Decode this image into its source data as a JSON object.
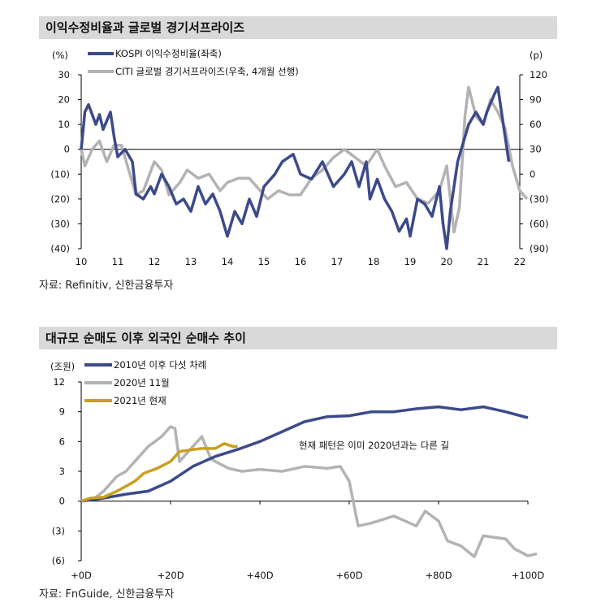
{
  "charts": [
    {
      "title": "이익수정비율과 글로벌 경기서프라이즈",
      "source": "자료: Refinitiv, 신한금융투자",
      "left_unit": "(%)",
      "right_unit": "(p)"
    },
    {
      "title": "대규모 순매도 이후 외국인 순매수 추이",
      "source": "자료: FnGuide, 신한금융투자",
      "left_unit": "(조원)",
      "annotation": "현재 패턴은 이미 2020년과는 다른 길"
    }
  ],
  "chart_data": [
    {
      "type": "line",
      "x_ticks": [
        "10",
        "11",
        "12",
        "13",
        "14",
        "15",
        "16",
        "17",
        "18",
        "19",
        "20",
        "21",
        "22"
      ],
      "xlim": [
        2010,
        2022
      ],
      "ylim_left": [
        -40,
        30
      ],
      "yticks_left": [
        "30",
        "20",
        "10",
        "0",
        "(10)",
        "(20)",
        "(30)",
        "(40)"
      ],
      "ylim_right": [
        -90,
        120
      ],
      "yticks_right": [
        "120",
        "90",
        "60",
        "30",
        "0",
        "(30)",
        "(60)",
        "(90)"
      ],
      "legend": "top-left",
      "series": [
        {
          "name": "KOSPI 이익수정비율(좌축)",
          "axis": "left",
          "color": "#3c4a8a",
          "points": [
            [
              2010,
              0
            ],
            [
              2010.1,
              15
            ],
            [
              2010.2,
              18
            ],
            [
              2010.4,
              10
            ],
            [
              2010.5,
              14
            ],
            [
              2010.6,
              8
            ],
            [
              2010.8,
              15
            ],
            [
              2010.9,
              5
            ],
            [
              2011,
              -3
            ],
            [
              2011.2,
              0
            ],
            [
              2011.4,
              -5
            ],
            [
              2011.5,
              -18
            ],
            [
              2011.7,
              -20
            ],
            [
              2011.9,
              -15
            ],
            [
              2012,
              -18
            ],
            [
              2012.2,
              -10
            ],
            [
              2012.4,
              -15
            ],
            [
              2012.6,
              -22
            ],
            [
              2012.8,
              -20
            ],
            [
              2013,
              -25
            ],
            [
              2013.2,
              -15
            ],
            [
              2013.4,
              -22
            ],
            [
              2013.6,
              -18
            ],
            [
              2013.8,
              -25
            ],
            [
              2014,
              -35
            ],
            [
              2014.2,
              -25
            ],
            [
              2014.4,
              -30
            ],
            [
              2014.6,
              -20
            ],
            [
              2014.8,
              -27
            ],
            [
              2015,
              -15
            ],
            [
              2015.3,
              -10
            ],
            [
              2015.5,
              -5
            ],
            [
              2015.8,
              -2
            ],
            [
              2016,
              -10
            ],
            [
              2016.3,
              -12
            ],
            [
              2016.6,
              -5
            ],
            [
              2016.9,
              -15
            ],
            [
              2017.2,
              -10
            ],
            [
              2017.4,
              -5
            ],
            [
              2017.6,
              -15
            ],
            [
              2017.8,
              -5
            ],
            [
              2017.9,
              -20
            ],
            [
              2018.1,
              -12
            ],
            [
              2018.3,
              -20
            ],
            [
              2018.5,
              -25
            ],
            [
              2018.7,
              -33
            ],
            [
              2018.9,
              -28
            ],
            [
              2019,
              -35
            ],
            [
              2019.2,
              -20
            ],
            [
              2019.4,
              -22
            ],
            [
              2019.6,
              -27
            ],
            [
              2019.8,
              -15
            ],
            [
              2019.9,
              -30
            ],
            [
              2020,
              -40
            ],
            [
              2020.1,
              -25
            ],
            [
              2020.3,
              -5
            ],
            [
              2020.5,
              5
            ],
            [
              2020.6,
              10
            ],
            [
              2020.8,
              15
            ],
            [
              2021,
              10
            ],
            [
              2021.1,
              15
            ],
            [
              2021.3,
              22
            ],
            [
              2021.4,
              25
            ],
            [
              2021.5,
              15
            ],
            [
              2021.6,
              5
            ],
            [
              2021.7,
              -5
            ]
          ]
        },
        {
          "name": "CITI 글로벌 경기서프라이즈(우축, 4개월 선행)",
          "axis": "right",
          "color": "#b3b3b3",
          "points": [
            [
              2010,
              30
            ],
            [
              2010.1,
              10
            ],
            [
              2010.3,
              30
            ],
            [
              2010.5,
              40
            ],
            [
              2010.7,
              15
            ],
            [
              2010.9,
              35
            ],
            [
              2011.1,
              35
            ],
            [
              2011.3,
              5
            ],
            [
              2011.5,
              -25
            ],
            [
              2011.7,
              -20
            ],
            [
              2012,
              15
            ],
            [
              2012.2,
              5
            ],
            [
              2012.4,
              -25
            ],
            [
              2012.7,
              -10
            ],
            [
              2012.9,
              5
            ],
            [
              2013.2,
              -5
            ],
            [
              2013.5,
              0
            ],
            [
              2013.8,
              -20
            ],
            [
              2014,
              -10
            ],
            [
              2014.3,
              -5
            ],
            [
              2014.6,
              -5
            ],
            [
              2014.9,
              -20
            ],
            [
              2015.1,
              -30
            ],
            [
              2015.4,
              -20
            ],
            [
              2015.7,
              -25
            ],
            [
              2016,
              -25
            ],
            [
              2016.3,
              -5
            ],
            [
              2016.6,
              5
            ],
            [
              2016.9,
              20
            ],
            [
              2017.2,
              30
            ],
            [
              2017.5,
              20
            ],
            [
              2017.8,
              10
            ],
            [
              2018.1,
              30
            ],
            [
              2018.3,
              10
            ],
            [
              2018.6,
              -15
            ],
            [
              2018.9,
              -10
            ],
            [
              2019.2,
              -30
            ],
            [
              2019.5,
              -35
            ],
            [
              2019.8,
              -20
            ],
            [
              2020,
              10
            ],
            [
              2020.2,
              -70
            ],
            [
              2020.35,
              -40
            ],
            [
              2020.5,
              70
            ],
            [
              2020.6,
              105
            ],
            [
              2020.8,
              70
            ],
            [
              2021,
              60
            ],
            [
              2021.2,
              90
            ],
            [
              2021.4,
              75
            ],
            [
              2021.6,
              55
            ],
            [
              2021.8,
              10
            ],
            [
              2022,
              -20
            ],
            [
              2022.2,
              -30
            ]
          ]
        }
      ]
    },
    {
      "type": "line",
      "x_ticks": [
        "+0D",
        "+20D",
        "+40D",
        "+60D",
        "+80D",
        "+100D"
      ],
      "xlim": [
        0,
        100
      ],
      "ylim": [
        -6,
        12
      ],
      "yticks": [
        "12",
        "9",
        "6",
        "3",
        "0",
        "(3)",
        "(6)"
      ],
      "legend": "top-left",
      "series": [
        {
          "name": "2010년 이후 다섯 차례",
          "color": "#3c4a8a",
          "points": [
            [
              0,
              0
            ],
            [
              5,
              0.3
            ],
            [
              10,
              0.7
            ],
            [
              15,
              1
            ],
            [
              20,
              2
            ],
            [
              25,
              3.5
            ],
            [
              30,
              4.5
            ],
            [
              35,
              5.2
            ],
            [
              40,
              6
            ],
            [
              45,
              7
            ],
            [
              50,
              8
            ],
            [
              55,
              8.5
            ],
            [
              60,
              8.6
            ],
            [
              65,
              9
            ],
            [
              70,
              9
            ],
            [
              75,
              9.3
            ],
            [
              80,
              9.5
            ],
            [
              85,
              9.2
            ],
            [
              90,
              9.5
            ],
            [
              95,
              9
            ],
            [
              100,
              8.4
            ]
          ]
        },
        {
          "name": "2020년 11월",
          "color": "#b3b3b3",
          "points": [
            [
              0,
              0
            ],
            [
              3,
              0.3
            ],
            [
              5,
              1
            ],
            [
              8,
              2.5
            ],
            [
              10,
              3
            ],
            [
              12,
              4
            ],
            [
              15,
              5.5
            ],
            [
              18,
              6.5
            ],
            [
              20,
              7.5
            ],
            [
              21,
              7.3
            ],
            [
              22,
              4
            ],
            [
              25,
              5.5
            ],
            [
              27,
              6.5
            ],
            [
              29,
              4.3
            ],
            [
              30,
              4
            ],
            [
              33,
              3.3
            ],
            [
              36,
              3
            ],
            [
              40,
              3.2
            ],
            [
              45,
              3
            ],
            [
              50,
              3.5
            ],
            [
              55,
              3.3
            ],
            [
              58,
              3.5
            ],
            [
              60,
              2
            ],
            [
              62,
              -2.5
            ],
            [
              65,
              -2.2
            ],
            [
              70,
              -1.5
            ],
            [
              75,
              -2.5
            ],
            [
              77,
              -1
            ],
            [
              80,
              -2
            ],
            [
              82,
              -4
            ],
            [
              85,
              -4.5
            ],
            [
              88,
              -5.6
            ],
            [
              90,
              -3.5
            ],
            [
              95,
              -3.8
            ],
            [
              97,
              -4.8
            ],
            [
              100,
              -5.5
            ],
            [
              102,
              -5.3
            ]
          ]
        },
        {
          "name": "2021년 현재",
          "color": "#c9a020",
          "points": [
            [
              0,
              0
            ],
            [
              2,
              0.3
            ],
            [
              5,
              0.4
            ],
            [
              8,
              1
            ],
            [
              10,
              1.5
            ],
            [
              12,
              2
            ],
            [
              14,
              2.8
            ],
            [
              17,
              3.3
            ],
            [
              20,
              4
            ],
            [
              22,
              5
            ],
            [
              25,
              5.2
            ],
            [
              27,
              5.3
            ],
            [
              30,
              5.3
            ],
            [
              32,
              5.8
            ],
            [
              34,
              5.5
            ],
            [
              35,
              5.5
            ]
          ]
        }
      ]
    }
  ]
}
